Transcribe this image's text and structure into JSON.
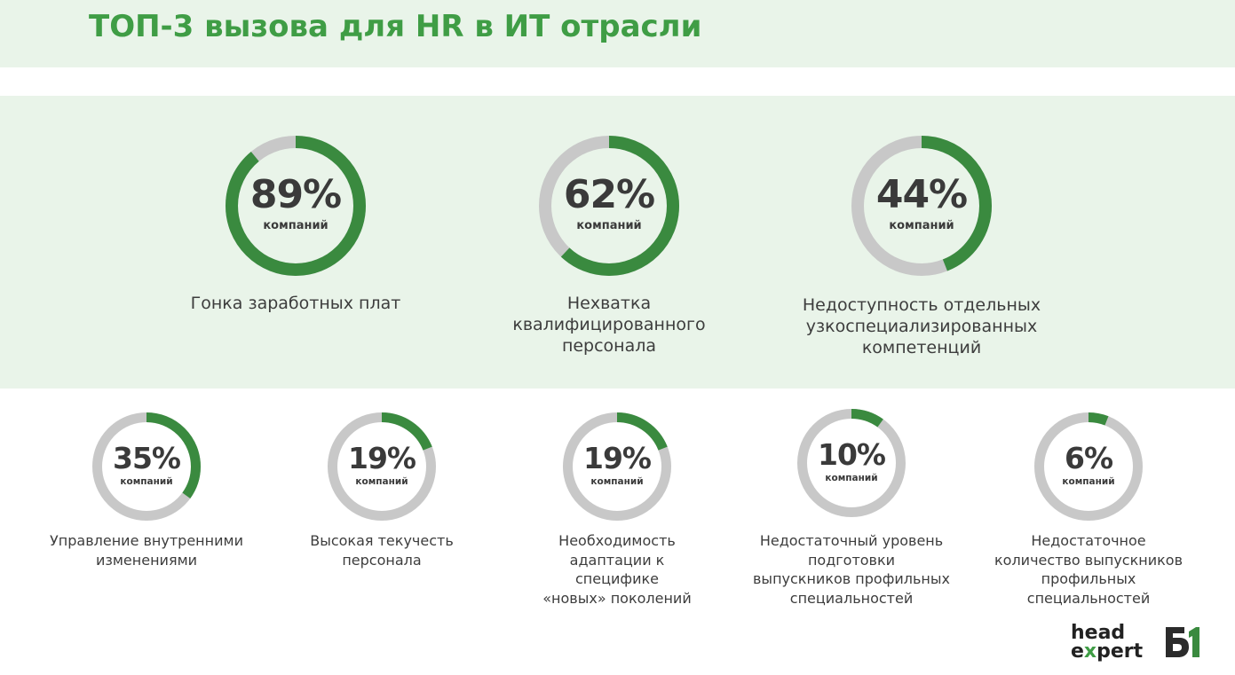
{
  "title": "ТОП-3 вызова для HR в ИТ отрасли",
  "colors": {
    "accent": "#3a8a3f",
    "track": "#c8c8c8",
    "title": "#3f9d45",
    "band": "#e9f4e9"
  },
  "chart_data": {
    "type": "donut",
    "unit_label": "компаний",
    "top": [
      {
        "value": 89,
        "display": "89%",
        "label": [
          "Гонка заработных плат"
        ]
      },
      {
        "value": 62,
        "display": "62%",
        "label": [
          "Нехватка",
          "квалифицированного",
          "персонала"
        ]
      },
      {
        "value": 44,
        "display": "44%",
        "label": [
          "Недоступность отдельных",
          "узкоспециализированных",
          "компетенций"
        ]
      }
    ],
    "bottom": [
      {
        "value": 35,
        "display": "35%",
        "label": [
          "Управление внутренними",
          "изменениями"
        ]
      },
      {
        "value": 19,
        "display": "19%",
        "label": [
          "Высокая текучесть",
          "персонала"
        ]
      },
      {
        "value": 19,
        "display": "19%",
        "label": [
          "Необходимость",
          "адаптации к",
          "специфике",
          "«новых» поколений"
        ]
      },
      {
        "value": 10,
        "display": "10%",
        "label": [
          "Недостаточный уровень",
          "подготовки",
          "выпускников профильных",
          "специальностей"
        ]
      },
      {
        "value": 6,
        "display": "6%",
        "label": [
          "Недостаточное",
          "количество выпускников",
          "профильных",
          "специальностей"
        ]
      }
    ]
  },
  "logo": {
    "line1": "head",
    "line2_pre": "e",
    "line2_x": "x",
    "line2_post": "pert",
    "icon": "b1-logo-icon"
  }
}
